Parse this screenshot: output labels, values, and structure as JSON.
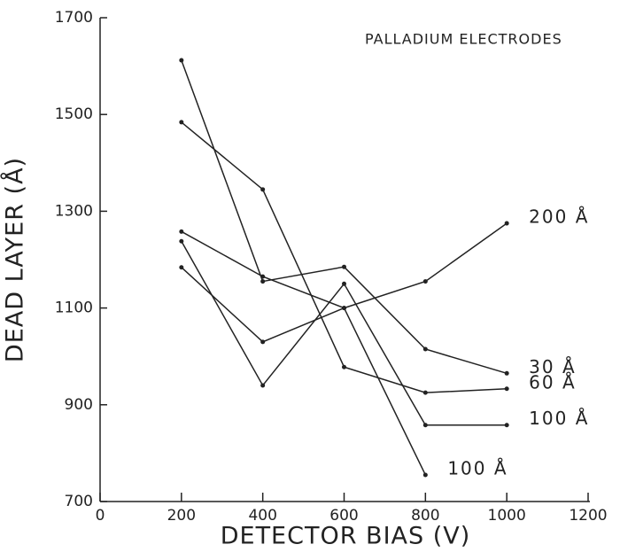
{
  "chart_data": {
    "type": "line",
    "title": "PALLADIUM ELECTRODES",
    "x_label": "DETECTOR BIAS (V)",
    "y_label": "DEAD LAYER (Å)",
    "x": [
      200,
      400,
      600,
      800,
      1000
    ],
    "series": [
      {
        "name": "200 Å",
        "color": "#222222",
        "values": [
          1184,
          1030,
          1100,
          1155,
          1275
        ]
      },
      {
        "name": "30 Å",
        "color": "#222222",
        "values": [
          1612,
          1155,
          1185,
          1015,
          965
        ]
      },
      {
        "name": "60 Å",
        "color": "#222222",
        "values": [
          1484,
          1345,
          978,
          925,
          933
        ]
      },
      {
        "name": "100 Å",
        "color": "#222222",
        "values": [
          1238,
          940,
          1150,
          858,
          858
        ]
      },
      {
        "name": "100 Å",
        "color": "#222222",
        "values": [
          1258,
          1165,
          1100,
          755,
          null
        ]
      }
    ],
    "xlim": [
      0,
      1200
    ],
    "xticks": [
      0,
      200,
      400,
      600,
      800,
      1000,
      1200
    ],
    "ylim": [
      700,
      1700
    ],
    "yticks": [
      700,
      900,
      1100,
      1300,
      1500,
      1700
    ]
  }
}
